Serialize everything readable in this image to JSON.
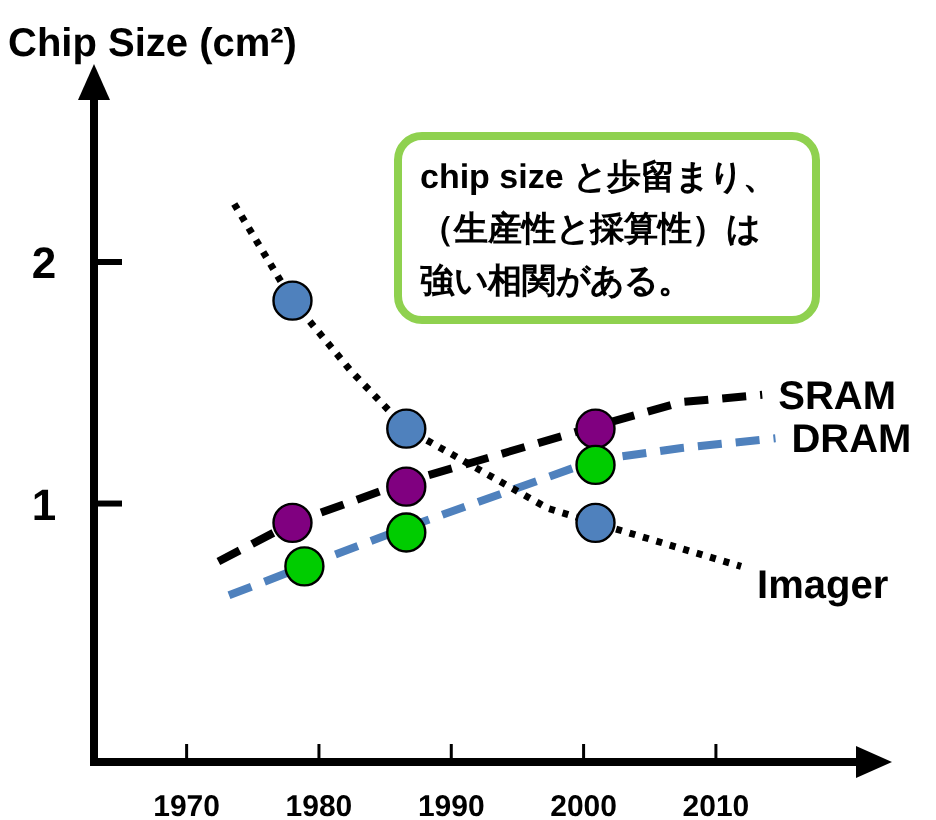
{
  "chart_data": {
    "type": "line",
    "ylabel": "Chip Size (cm²)",
    "xlim": [
      1963,
      2022.4
    ],
    "ylim": [
      -0.07,
      2.77
    ],
    "xticks": [
      1970,
      1980,
      1990,
      2000,
      2010
    ],
    "yticks": [
      1,
      2
    ],
    "grid": false,
    "legend": false,
    "annotations": [
      "chip size と歩留まり、",
      "（生産性と採算性）は",
      "強い相関がある。"
    ],
    "series": [
      {
        "name": "SRAM",
        "type": "line",
        "color": "#000000",
        "line_style": "dashed",
        "x": [
          1972.4,
          1978,
          1986.6,
          2000.9,
          2007.4,
          2013.5
        ],
        "values": [
          0.76,
          0.92,
          1.09,
          1.32,
          1.42,
          1.45
        ]
      },
      {
        "name": "DRAM",
        "type": "line",
        "color": "#4f81bd",
        "line_style": "dashed",
        "x": [
          1973.2,
          1978.9,
          1986.6,
          2000.9,
          2007.4,
          2014.5
        ],
        "values": [
          0.62,
          0.74,
          0.9,
          1.18,
          1.23,
          1.27
        ]
      },
      {
        "name": "Imager",
        "type": "line",
        "color": "#000000",
        "line_style": "dotted",
        "x": [
          1973.6,
          1978,
          1982.4,
          1986.6,
          1997.3,
          2000.9,
          2011.9
        ],
        "values": [
          2.24,
          1.84,
          1.55,
          1.31,
          0.98,
          0.92,
          0.74
        ]
      },
      {
        "type": "scatter",
        "marker": "circle",
        "color": "#4f81bd",
        "x": [
          1978,
          1986.6,
          2000.9
        ],
        "values": [
          1.84,
          1.31,
          0.92
        ]
      },
      {
        "type": "scatter",
        "marker": "circle",
        "color": "#800080",
        "x": [
          1978,
          1986.6,
          2000.9
        ],
        "values": [
          0.92,
          1.07,
          1.31
        ]
      },
      {
        "type": "scatter",
        "marker": "circle",
        "color": "#00cc00",
        "x": [
          1978.9,
          1986.6,
          2000.9
        ],
        "values": [
          0.74,
          0.88,
          1.16
        ]
      }
    ]
  }
}
